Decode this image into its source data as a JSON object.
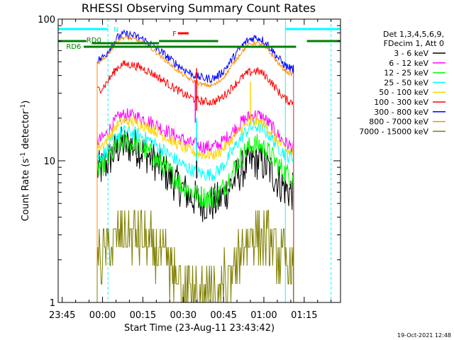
{
  "chart_data": {
    "type": "line",
    "title": "RHESSI Observing Summary Count Rates",
    "xlabel": "Start Time (23-Aug-11 23:43:42)",
    "ylabel": "Count Rate (s",
    "ylabel_sup": "-1",
    "ylabel_mid": " detector",
    "ylabel_end": ")",
    "ylabel_full": "Count Rate (s-1 detector-1)",
    "y_scale": "log",
    "ylim": [
      1,
      100
    ],
    "xlim_minutes": [
      -16.5,
      88.5
    ],
    "x_ticks": [
      {
        "label": "23:45",
        "minute": -15
      },
      {
        "label": "00:00",
        "minute": 0
      },
      {
        "label": "00:15",
        "minute": 15
      },
      {
        "label": "00:30",
        "minute": 30
      },
      {
        "label": "00:45",
        "minute": 45
      },
      {
        "label": "01:00",
        "minute": 60
      },
      {
        "label": "01:15",
        "minute": 75
      }
    ],
    "y_ticks": [
      {
        "label": "1",
        "value": 1
      },
      {
        "label": "10",
        "value": 10
      },
      {
        "label": "100",
        "value": 100
      }
    ],
    "grid": false,
    "legend_position": "right",
    "legend_header": [
      "Det 1,3,4,5,6,9,",
      "FDecim 1, Att 0"
    ],
    "series": [
      {
        "name": "3 - 6 keV",
        "color": "#000000",
        "type": "bell",
        "start": -2,
        "end": 71,
        "peak1_t": 8,
        "peak1_v": 13,
        "dip_t": 40,
        "dip_v": 5,
        "peak2_t": 57,
        "peak2_v": 10,
        "noise": 0.14
      },
      {
        "name": "6 - 12 keV",
        "color": "#ff00ff",
        "type": "bell",
        "start": -2,
        "end": 71,
        "peak1_t": 8,
        "peak1_v": 21,
        "dip_t": 40,
        "dip_v": 12.5,
        "peak2_t": 57,
        "peak2_v": 21,
        "noise": 0.05
      },
      {
        "name": "12 - 25 keV",
        "color": "#00ff00",
        "type": "bell",
        "start": -2,
        "end": 71,
        "peak1_t": 8,
        "peak1_v": 13.5,
        "dip_t": 40,
        "dip_v": 5.5,
        "peak2_t": 57,
        "peak2_v": 13,
        "noise": 0.08
      },
      {
        "name": "25 - 50 keV",
        "color": "#00ffff",
        "type": "bell",
        "start": -2,
        "end": 71,
        "peak1_t": 8,
        "peak1_v": 16,
        "dip_t": 40,
        "dip_v": 8,
        "peak2_t": 57,
        "peak2_v": 17.5,
        "noise": 0.05
      },
      {
        "name": "50 - 100 keV",
        "color": "#ffd700",
        "type": "bell",
        "start": -2,
        "end": 71,
        "peak1_t": 8,
        "peak1_v": 19,
        "dip_t": 40,
        "dip_v": 11,
        "peak2_t": 57,
        "peak2_v": 19,
        "noise": 0.04
      },
      {
        "name": "100 - 300 keV",
        "color": "#ff0000",
        "type": "bell",
        "start": -2,
        "end": 71,
        "peak1_t": 8,
        "peak1_v": 48,
        "dip_t": 40,
        "dip_v": 26,
        "peak2_t": 57,
        "peak2_v": 43,
        "noise": 0.03
      },
      {
        "name": "300 - 800 keV",
        "color": "#0000ff",
        "type": "bell",
        "start": -2,
        "end": 71,
        "peak1_t": 8,
        "peak1_v": 78,
        "dip_t": 40,
        "dip_v": 38,
        "peak2_t": 57,
        "peak2_v": 74,
        "noise": 0.03
      },
      {
        "name": "800 - 7000 keV",
        "color": "#ff8c00",
        "type": "bell",
        "start": -2,
        "end": 71,
        "peak1_t": 8,
        "peak1_v": 74,
        "dip_t": 40,
        "dip_v": 34,
        "peak2_t": 57,
        "peak2_v": 68,
        "noise": 0.015
      },
      {
        "name": "7000 - 15000 keV",
        "color": "#808000",
        "type": "steps",
        "start": -2,
        "end": 71,
        "peak1_t": 8,
        "peak1_v": 3.1,
        "dip_t": 40,
        "dip_v": 1.2,
        "peak2_t": 57,
        "peak2_v": 3.0,
        "noise": 0.2
      }
    ],
    "spike_events": [
      {
        "color": "#ff0000",
        "minute": 35,
        "value": 45
      },
      {
        "color": "#ff00ff",
        "minute": 34.5,
        "value": 37
      },
      {
        "color": "#00ff00",
        "minute": 35,
        "value": 17
      },
      {
        "color": "#000000",
        "minute": 35,
        "value": 15
      },
      {
        "color": "#00ffff",
        "minute": 35,
        "value": 20
      },
      {
        "color": "#ffd700",
        "minute": 55,
        "value": 36
      }
    ],
    "annotations": [
      {
        "label": "N",
        "color": "#00ffff"
      },
      {
        "label": "RD0",
        "color": "#008000"
      },
      {
        "label": "RD6",
        "color": "#008000"
      },
      {
        "label": "F",
        "color": "#ff0000"
      }
    ],
    "status_bars": [
      {
        "color": "#00ffff",
        "row": "night",
        "from": -16.5,
        "to": 2
      },
      {
        "color": "#00ffff",
        "row": "night",
        "from": 68,
        "to": 88.5
      },
      {
        "color": "#008000",
        "row": "saa_hi",
        "from": -16.5,
        "to": -6
      },
      {
        "color": "#008000",
        "row": "saa_mid",
        "from": -4,
        "to": 21
      },
      {
        "color": "#008000",
        "row": "saa_hi",
        "from": 21,
        "to": 43
      },
      {
        "color": "#008000",
        "row": "saa_lo",
        "from": -7,
        "to": 72
      },
      {
        "color": "#008000",
        "row": "saa_hi",
        "from": 76,
        "to": 88.5
      },
      {
        "color": "#ff0000",
        "row": "flare",
        "from": 28,
        "to": 32
      }
    ],
    "vlines": [
      {
        "color": "#00ffff",
        "minute": 2,
        "dashed": true
      },
      {
        "color": "#00ffff",
        "minute": 68,
        "dashed": false
      },
      {
        "color": "#00ffff",
        "minute": 85,
        "dashed": true
      }
    ]
  },
  "footer": {
    "date_stamp": "19-Oct-2021 12:48"
  }
}
